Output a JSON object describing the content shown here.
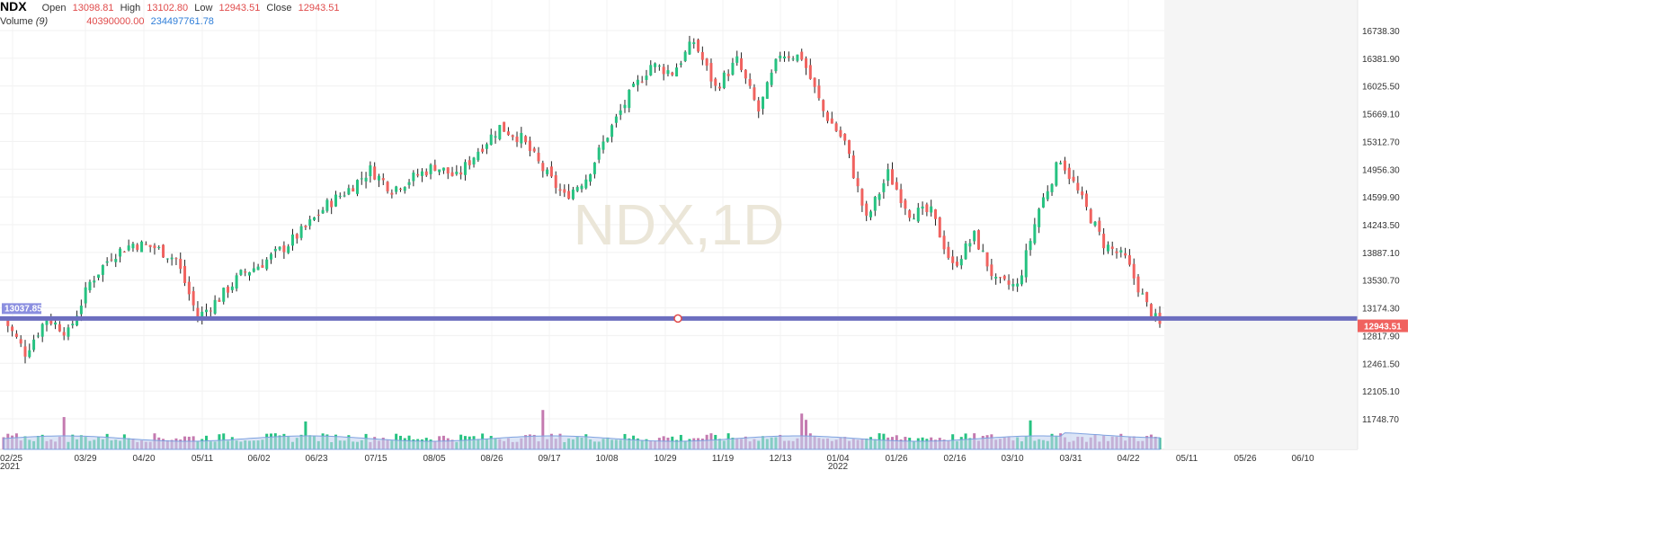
{
  "header": {
    "symbol": "NDX",
    "open_label": "Open",
    "open_value": "13098.81",
    "high_label": "High",
    "high_value": "13102.80",
    "low_label": "Low",
    "low_value": "12943.51",
    "close_label": "Close",
    "close_value": "12943.51",
    "volume_label": "Volume",
    "volume_period": "(9)",
    "volume_value": "40390000.00",
    "volume_ma_value": "234497761.78"
  },
  "watermark": "NDX,1D",
  "horizontal_line": {
    "label": "13037.85",
    "value": 13037.85
  },
  "last_price": {
    "label": "12943.51",
    "value": 12943.51
  },
  "colors": {
    "up": "#26c281",
    "down": "#f0625f",
    "hline": "#6c6ebf",
    "vol_ma_fill": "#c5d3f0",
    "vol_ma_stroke": "#7ea2e0",
    "last_price_bg": "#f0625f",
    "hline_label_bg": "#8b8fe0",
    "watermark": "#ebe6d8"
  },
  "chart_data": {
    "type": "candlestick",
    "y_axis_ticks": [
      "16738.30",
      "16381.90",
      "16025.50",
      "15669.10",
      "15312.70",
      "14956.30",
      "14599.90",
      "14243.50",
      "13887.10",
      "13530.70",
      "13174.30",
      "12817.90",
      "12461.50",
      "12105.10",
      "11748.70"
    ],
    "ylim": [
      11600,
      16900
    ],
    "x_axis_ticks": [
      "02/25",
      "03/29",
      "04/20",
      "05/11",
      "06/02",
      "06/23",
      "07/15",
      "08/05",
      "08/26",
      "09/17",
      "10/08",
      "10/29",
      "11/19",
      "12/13",
      "01/04",
      "01/26",
      "02/16",
      "03/10",
      "03/31",
      "04/22",
      "05/11",
      "05/26",
      "06/10"
    ],
    "x_axis_year_labels": [
      {
        "tick": "02/25",
        "year": "2021"
      },
      {
        "tick": "01/04",
        "year": "2022"
      }
    ],
    "anchors": [
      {
        "i": 0,
        "v": 13037
      },
      {
        "i": 5,
        "v": 12600
      },
      {
        "i": 10,
        "v": 13050
      },
      {
        "i": 15,
        "v": 12850
      },
      {
        "i": 20,
        "v": 13500
      },
      {
        "i": 25,
        "v": 13850
      },
      {
        "i": 30,
        "v": 14000
      },
      {
        "i": 35,
        "v": 13950
      },
      {
        "i": 40,
        "v": 13800
      },
      {
        "i": 45,
        "v": 13050
      },
      {
        "i": 50,
        "v": 13300
      },
      {
        "i": 55,
        "v": 13600
      },
      {
        "i": 60,
        "v": 13750
      },
      {
        "i": 65,
        "v": 13950
      },
      {
        "i": 70,
        "v": 14200
      },
      {
        "i": 75,
        "v": 14500
      },
      {
        "i": 80,
        "v": 14700
      },
      {
        "i": 85,
        "v": 14950
      },
      {
        "i": 90,
        "v": 14700
      },
      {
        "i": 95,
        "v": 14850
      },
      {
        "i": 100,
        "v": 15000
      },
      {
        "i": 105,
        "v": 14850
      },
      {
        "i": 110,
        "v": 15200
      },
      {
        "i": 115,
        "v": 15500
      },
      {
        "i": 120,
        "v": 15350
      },
      {
        "i": 125,
        "v": 14950
      },
      {
        "i": 130,
        "v": 14600
      },
      {
        "i": 135,
        "v": 14850
      },
      {
        "i": 140,
        "v": 15400
      },
      {
        "i": 145,
        "v": 15900
      },
      {
        "i": 150,
        "v": 16300
      },
      {
        "i": 155,
        "v": 16200
      },
      {
        "i": 160,
        "v": 16600
      },
      {
        "i": 165,
        "v": 16000
      },
      {
        "i": 170,
        "v": 16350
      },
      {
        "i": 175,
        "v": 15700
      },
      {
        "i": 180,
        "v": 16450
      },
      {
        "i": 185,
        "v": 16400
      },
      {
        "i": 190,
        "v": 15700
      },
      {
        "i": 195,
        "v": 15300
      },
      {
        "i": 200,
        "v": 14300
      },
      {
        "i": 205,
        "v": 14900
      },
      {
        "i": 210,
        "v": 14400
      },
      {
        "i": 215,
        "v": 14400
      },
      {
        "i": 220,
        "v": 13700
      },
      {
        "i": 225,
        "v": 14100
      },
      {
        "i": 230,
        "v": 13500
      },
      {
        "i": 235,
        "v": 13450
      },
      {
        "i": 240,
        "v": 14450
      },
      {
        "i": 245,
        "v": 15100
      },
      {
        "i": 250,
        "v": 14550
      },
      {
        "i": 255,
        "v": 14000
      },
      {
        "i": 260,
        "v": 13800
      },
      {
        "i": 265,
        "v": 13200
      },
      {
        "i": 268,
        "v": 12943
      }
    ],
    "volume_spikes": [
      14,
      70,
      125,
      185,
      186,
      238
    ]
  }
}
